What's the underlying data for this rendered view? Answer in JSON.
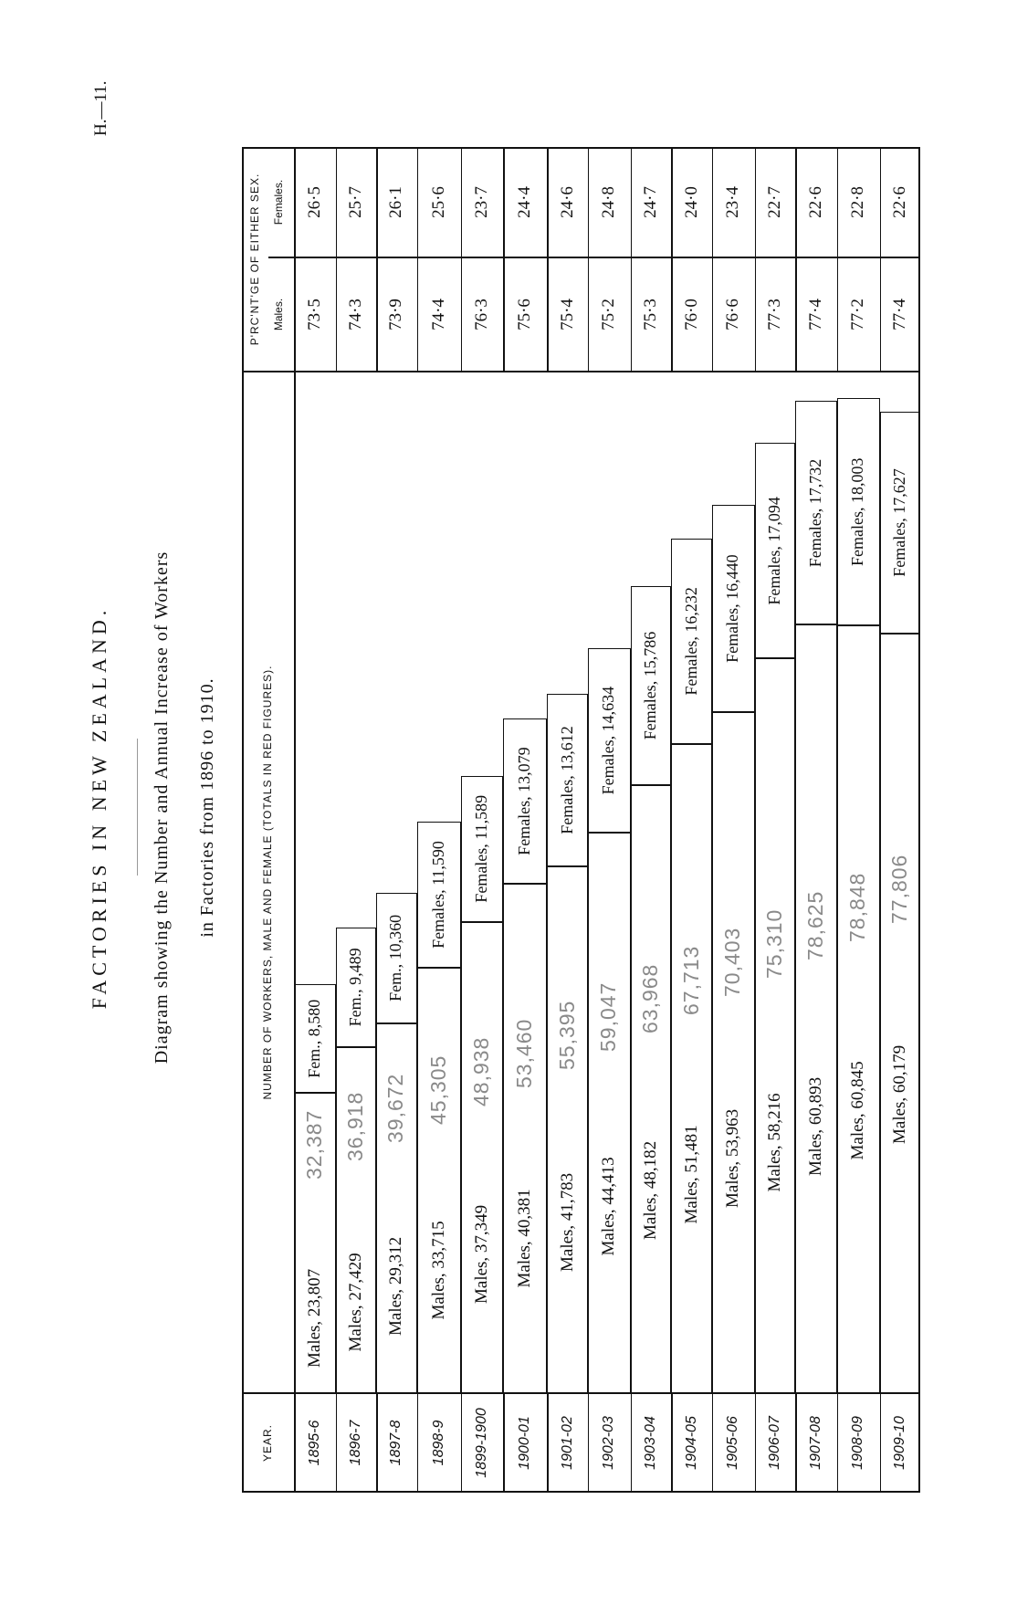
{
  "page_number": "H.—11.",
  "title": "FACTORIES IN NEW ZEALAND.",
  "subtitle_line1": "Diagram showing the Number and Annual Increase of Workers",
  "subtitle_line2": "in Factories from 1896 to 1910.",
  "table": {
    "year_header": "YEAR.",
    "workers_header": "NUMBER OF WORKERS, MALE AND FEMALE (TOTALS IN RED FIGURES).",
    "pct_header": "P'RC'NT'GE OF EITHER SEX.",
    "pct_males_header": "Males.",
    "pct_females_header": "Females.",
    "total_color": "#8a8a8a",
    "rows": [
      {
        "year": "1895-6",
        "males": "Males, 23,807",
        "females": "Fem., 8,580",
        "total": "32,387",
        "pct_m": "73·5",
        "pct_f": "26·5"
      },
      {
        "year": "1896-7",
        "males": "Males, 27,429",
        "females": "Fem., 9,489",
        "total": "36,918",
        "pct_m": "74·3",
        "pct_f": "25·7"
      },
      {
        "year": "1897-8",
        "males": "Males, 29,312",
        "females": "Fem., 10,360",
        "total": "39,672",
        "pct_m": "73·9",
        "pct_f": "26·1"
      },
      {
        "year": "1898-9",
        "males": "Males, 33,715",
        "females": "Females, 11,590",
        "total": "45,305",
        "pct_m": "74·4",
        "pct_f": "25·6"
      },
      {
        "year": "1899-1900",
        "males": "Males, 37,349",
        "females": "Females, 11,589",
        "total": "48,938",
        "pct_m": "76·3",
        "pct_f": "23·7"
      },
      {
        "year": "1900-01",
        "males": "Males, 40,381",
        "females": "Females, 13,079",
        "total": "53,460",
        "pct_m": "75·6",
        "pct_f": "24·4"
      },
      {
        "year": "1901-02",
        "males": "Males, 41,783",
        "females": "Females, 13,612",
        "total": "55,395",
        "pct_m": "75·4",
        "pct_f": "24·6"
      },
      {
        "year": "1902-03",
        "males": "Males, 44,413",
        "females": "Females, 14,634",
        "total": "59,047",
        "pct_m": "75·2",
        "pct_f": "24·8"
      },
      {
        "year": "1903-04",
        "males": "Males, 48,182",
        "females": "Females, 15,786",
        "total": "63,968",
        "pct_m": "75·3",
        "pct_f": "24·7"
      },
      {
        "year": "1904-05",
        "males": "Males, 51,481",
        "females": "Females, 16,232",
        "total": "67,713",
        "pct_m": "76·0",
        "pct_f": "24·0"
      },
      {
        "year": "1905-06",
        "males": "Males, 53,963",
        "females": "Females, 16,440",
        "total": "70,403",
        "pct_m": "76·6",
        "pct_f": "23·4"
      },
      {
        "year": "1906-07",
        "males": "Males, 58,216",
        "females": "Females, 17,094",
        "total": "75,310",
        "pct_m": "77·3",
        "pct_f": "22·7"
      },
      {
        "year": "1907-08",
        "males": "Males, 60,893",
        "females": "Females, 17,732",
        "total": "78,625",
        "pct_m": "77·4",
        "pct_f": "22·6"
      },
      {
        "year": "1908-09",
        "males": "Males, 60,845",
        "females": "Females, 18,003",
        "total": "78,848",
        "pct_m": "77·2",
        "pct_f": "22·8"
      },
      {
        "year": "1909-10",
        "males": "Males, 60,179",
        "females": "Females, 17,627",
        "total": "77,806",
        "pct_m": "77·4",
        "pct_f": "22·6"
      }
    ]
  }
}
